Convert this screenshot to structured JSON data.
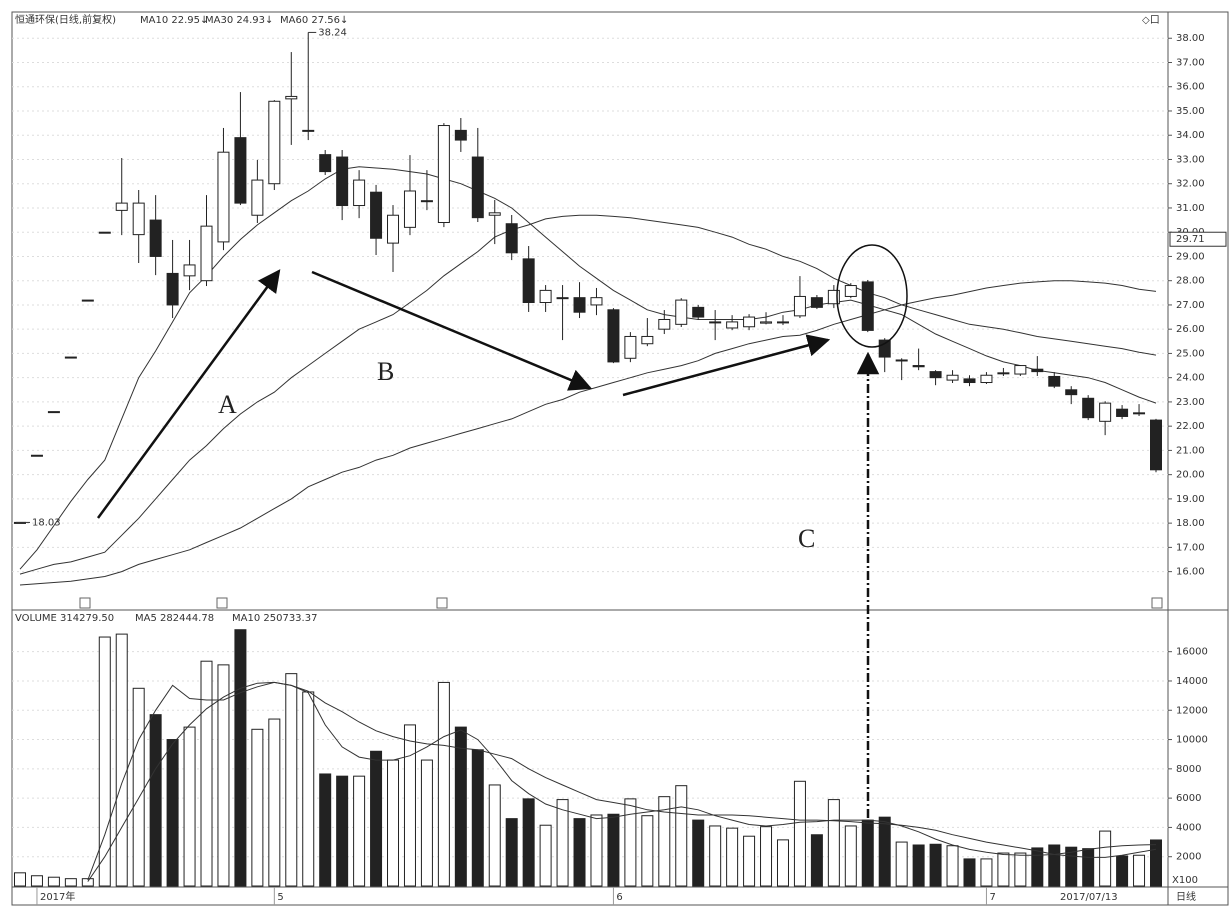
{
  "chart_data": [
    {
      "type": "candlestick",
      "header": [
        "恒通环保(日线,前复权)",
        "MA10 22.95↓",
        "MA30 24.93↓",
        "MA60 27.56↓"
      ],
      "toolbar": "◇口",
      "annotations": [
        "A",
        "B",
        "C"
      ],
      "max_label": 38.24,
      "min_label": 18.03,
      "price_box": {
        "value": 29.71,
        "label": "29.71"
      },
      "up_color": "#ffffff",
      "down_color": "#222222",
      "open": [
        18.03,
        20.8,
        22.6,
        24.85,
        27.2,
        30.0,
        30.9,
        29.9,
        30.5,
        28.3,
        28.2,
        28.0,
        29.6,
        33.9,
        30.7,
        32.0,
        35.5,
        34.2,
        33.2,
        33.1,
        31.1,
        31.65,
        29.55,
        30.2,
        31.3,
        30.4,
        34.2,
        33.1,
        30.7,
        30.35,
        28.9,
        27.1,
        27.3,
        27.3,
        27.0,
        26.8,
        24.8,
        25.4,
        26.0,
        26.2,
        26.9,
        26.3,
        26.05,
        26.1,
        26.25,
        26.3,
        26.55,
        27.3,
        27.05,
        27.35,
        27.95,
        25.55,
        24.73,
        24.5,
        24.25,
        23.9,
        23.95,
        23.8,
        24.2,
        24.15,
        24.35,
        24.05,
        23.5,
        23.15,
        22.2,
        22.7,
        22.55,
        22.25
      ],
      "high": [
        18.03,
        20.8,
        22.6,
        24.85,
        27.2,
        30.0,
        33.06,
        31.74,
        31.53,
        29.68,
        29.68,
        31.53,
        34.3,
        35.78,
        32.98,
        35.45,
        37.43,
        38.24,
        33.39,
        33.39,
        32.56,
        31.95,
        31.12,
        33.18,
        32.56,
        34.5,
        34.71,
        34.3,
        31.33,
        30.71,
        29.43,
        27.82,
        27.82,
        27.94,
        27.7,
        26.87,
        25.88,
        26.46,
        26.79,
        27.28,
        27.0,
        26.79,
        26.58,
        26.62,
        26.7,
        26.58,
        28.19,
        27.41,
        27.82,
        27.9,
        28.03,
        25.63,
        24.8,
        25.2,
        24.31,
        24.31,
        24.1,
        24.23,
        24.4,
        24.52,
        24.89,
        24.23,
        23.65,
        23.28,
        23.03,
        22.87,
        22.91,
        22.3
      ],
      "low": [
        18.03,
        20.8,
        22.6,
        24.85,
        27.2,
        30.0,
        29.88,
        28.73,
        28.23,
        26.46,
        27.61,
        27.78,
        29.26,
        31.12,
        30.38,
        31.74,
        33.6,
        33.8,
        32.36,
        30.5,
        30.58,
        29.06,
        28.36,
        29.88,
        30.91,
        30.21,
        33.31,
        30.42,
        29.51,
        28.85,
        26.71,
        26.71,
        25.55,
        26.46,
        26.58,
        24.6,
        24.64,
        25.3,
        25.8,
        26.09,
        26.38,
        25.55,
        25.96,
        25.96,
        26.2,
        26.17,
        26.46,
        26.83,
        26.87,
        27.28,
        25.88,
        24.23,
        23.9,
        24.31,
        23.69,
        23.78,
        23.65,
        23.74,
        24.07,
        24.07,
        24.07,
        23.57,
        22.91,
        22.25,
        21.63,
        22.29,
        22.42,
        20.1
      ],
      "close": [
        18.03,
        20.8,
        22.6,
        24.85,
        27.2,
        30.0,
        31.2,
        31.2,
        29.0,
        27.0,
        28.65,
        30.25,
        33.3,
        31.2,
        32.15,
        35.4,
        35.6,
        34.2,
        32.5,
        31.1,
        32.15,
        29.75,
        30.7,
        31.7,
        31.3,
        34.4,
        33.8,
        30.6,
        30.8,
        29.15,
        27.1,
        27.6,
        27.3,
        26.7,
        27.3,
        24.65,
        25.7,
        25.7,
        26.4,
        27.2,
        26.5,
        26.3,
        26.3,
        26.5,
        26.3,
        26.3,
        27.35,
        26.9,
        27.6,
        27.8,
        25.95,
        24.85,
        24.73,
        24.45,
        24.0,
        24.1,
        23.8,
        24.1,
        24.2,
        24.5,
        24.25,
        23.65,
        23.3,
        22.35,
        22.95,
        22.4,
        22.55,
        20.2
      ],
      "series": [
        {
          "name": "MA10",
          "color": "#333333",
          "values": [
            16.1,
            16.9,
            17.9,
            18.9,
            19.8,
            20.6,
            22.3,
            24.0,
            25.1,
            26.3,
            27.5,
            28.2,
            29.0,
            29.7,
            30.3,
            30.8,
            31.3,
            31.7,
            32.2,
            32.6,
            32.7,
            32.65,
            32.6,
            32.5,
            32.4,
            32.2,
            32.0,
            31.7,
            31.4,
            31.0,
            30.4,
            29.8,
            29.2,
            28.6,
            28.1,
            27.6,
            27.2,
            26.8,
            26.6,
            26.5,
            26.4,
            26.4,
            26.4,
            26.4,
            26.5,
            26.7,
            26.8,
            27.0,
            27.1,
            27.2,
            27.0,
            26.8,
            26.6,
            26.2,
            25.8,
            25.5,
            25.2,
            24.9,
            24.65,
            24.5,
            24.3,
            24.2,
            24.1,
            24.0,
            23.8,
            23.5,
            23.2,
            22.95
          ]
        },
        {
          "name": "MA30",
          "color": "#333333",
          "values": [
            15.9,
            16.1,
            16.3,
            16.4,
            16.6,
            16.8,
            17.5,
            18.2,
            19.0,
            19.8,
            20.6,
            21.2,
            21.9,
            22.5,
            23.0,
            23.4,
            24.0,
            24.5,
            25.0,
            25.5,
            26.0,
            26.3,
            26.6,
            27.1,
            27.6,
            28.2,
            28.7,
            29.2,
            29.8,
            30.1,
            30.3,
            30.55,
            30.65,
            30.7,
            30.7,
            30.65,
            30.6,
            30.5,
            30.4,
            30.3,
            30.2,
            30.0,
            29.8,
            29.5,
            29.3,
            29.0,
            28.8,
            28.5,
            28.1,
            27.8,
            27.5,
            27.3,
            27.0,
            26.8,
            26.6,
            26.4,
            26.2,
            26.1,
            26.0,
            25.85,
            25.7,
            25.6,
            25.5,
            25.4,
            25.3,
            25.2,
            25.05,
            24.93
          ]
        },
        {
          "name": "MA60",
          "color": "#333333",
          "values": [
            15.45,
            15.5,
            15.55,
            15.6,
            15.7,
            15.8,
            16.0,
            16.3,
            16.5,
            16.7,
            16.9,
            17.2,
            17.5,
            17.8,
            18.2,
            18.6,
            19.0,
            19.5,
            19.8,
            20.1,
            20.3,
            20.6,
            20.8,
            21.1,
            21.3,
            21.5,
            21.7,
            21.9,
            22.1,
            22.3,
            22.6,
            22.9,
            23.1,
            23.4,
            23.6,
            23.8,
            24.0,
            24.2,
            24.35,
            24.5,
            24.7,
            25.0,
            25.2,
            25.4,
            25.55,
            25.7,
            25.75,
            25.95,
            26.2,
            26.4,
            26.6,
            26.8,
            27.0,
            27.15,
            27.3,
            27.4,
            27.55,
            27.7,
            27.8,
            27.9,
            27.95,
            28.0,
            28.0,
            27.95,
            27.9,
            27.8,
            27.65,
            27.56
          ]
        }
      ],
      "ylim": [
        14.5,
        39
      ],
      "yticks": [
        {
          "value": 16,
          "label": "16.00"
        },
        {
          "value": 17,
          "label": "17.00"
        },
        {
          "value": 18,
          "label": "18.00"
        },
        {
          "value": 19,
          "label": "19.00"
        },
        {
          "value": 20,
          "label": "20.00"
        },
        {
          "value": 21,
          "label": "21.00"
        },
        {
          "value": 22,
          "label": "22.00"
        },
        {
          "value": 23,
          "label": "23.00"
        },
        {
          "value": 24,
          "label": "24.00"
        },
        {
          "value": 25,
          "label": "25.00"
        },
        {
          "value": 26,
          "label": "26.00"
        },
        {
          "value": 27,
          "label": "27.00"
        },
        {
          "value": 28,
          "label": "28.00"
        },
        {
          "value": 29,
          "label": "29.00"
        },
        {
          "value": 30,
          "label": "30.00"
        },
        {
          "value": 31,
          "label": "31.00"
        },
        {
          "value": 32,
          "label": "32.00"
        },
        {
          "value": 33,
          "label": "33.00"
        },
        {
          "value": 34,
          "label": "34.00"
        },
        {
          "value": 35,
          "label": "35.00"
        },
        {
          "value": 36,
          "label": "36.00"
        },
        {
          "value": 37,
          "label": "37.00"
        },
        {
          "value": 38,
          "label": "38.00"
        }
      ],
      "grid": true
    },
    {
      "type": "bar",
      "header": [
        "VOLUME 314279.50",
        "MA5 282444.78",
        "MA10 250733.37"
      ],
      "unit": "X100",
      "period": "日线",
      "cursor_date": "2017/07/13",
      "categories": [
        null,
        "2017年",
        null,
        null,
        null,
        null,
        null,
        null,
        null,
        null,
        null,
        null,
        null,
        null,
        null,
        "5",
        null,
        null,
        null,
        null,
        null,
        null,
        null,
        null,
        null,
        null,
        null,
        null,
        null,
        null,
        null,
        null,
        null,
        null,
        null,
        "6",
        null,
        null,
        null,
        null,
        null,
        null,
        null,
        null,
        null,
        null,
        null,
        null,
        null,
        null,
        null,
        null,
        null,
        null,
        null,
        null,
        null,
        "7",
        null,
        null,
        null,
        null,
        null,
        null,
        null,
        null,
        null,
        null
      ],
      "values": [
        900,
        700,
        600,
        500,
        500,
        17000,
        17200,
        13500,
        11700,
        10000,
        10850,
        15350,
        15100,
        17500,
        10700,
        11400,
        14500,
        13250,
        7650,
        7500,
        7500,
        9200,
        8600,
        11000,
        8600,
        13900,
        10850,
        9300,
        6900,
        4600,
        5950,
        4150,
        5900,
        4600,
        4850,
        4900,
        5950,
        4800,
        6100,
        6850,
        4500,
        4100,
        3950,
        3400,
        4050,
        3150,
        7150,
        3500,
        5900,
        4100,
        4500,
        4700,
        3000,
        2800,
        2850,
        2750,
        1850,
        1850,
        2250,
        2250,
        2600,
        2800,
        2650,
        2550,
        3750,
        2050,
        2100,
        3143
      ],
      "series": [
        {
          "name": "MA5",
          "color": "#333333",
          "values": [
            null,
            null,
            null,
            null,
            400,
            3500,
            7000,
            10000,
            12000,
            13700,
            12800,
            12700,
            12700,
            13200,
            13600,
            13900,
            13700,
            13200,
            11000,
            9500,
            8800,
            8600,
            8600,
            8900,
            9500,
            10200,
            10650,
            10000,
            8700,
            7200,
            6300,
            5600,
            5200,
            4900,
            4600,
            4700,
            4900,
            5050,
            5200,
            5400,
            5200,
            4800,
            4500,
            4200,
            4100,
            4200,
            4350,
            4400,
            4500,
            4500,
            4500,
            4400,
            4100,
            3700,
            3200,
            2800,
            2500,
            2300,
            2150,
            2100,
            2100,
            2150,
            2300,
            2500,
            2650,
            2750,
            2800,
            2824
          ]
        },
        {
          "name": "MA10",
          "color": "#333333",
          "values": [
            null,
            null,
            null,
            null,
            300,
            2000,
            4000,
            6000,
            8000,
            9700,
            11000,
            12100,
            12900,
            13500,
            13850,
            13900,
            13700,
            13300,
            12500,
            11900,
            11200,
            10600,
            10200,
            9900,
            9700,
            9600,
            9400,
            9300,
            9000,
            8700,
            8000,
            7400,
            6900,
            6400,
            5900,
            5700,
            5500,
            5200,
            5050,
            4950,
            4850,
            4850,
            4850,
            4800,
            4700,
            4600,
            4500,
            4500,
            4450,
            4400,
            4300,
            4250,
            4150,
            4000,
            3800,
            3500,
            3250,
            3000,
            2800,
            2600,
            2400,
            2150,
            2050,
            1950,
            1950,
            2100,
            2300,
            2507
          ]
        }
      ],
      "ylim": [
        0,
        18300
      ],
      "yticks": [
        2000,
        4000,
        6000,
        8000,
        10000,
        12000,
        14000,
        16000
      ],
      "grid": true
    }
  ]
}
